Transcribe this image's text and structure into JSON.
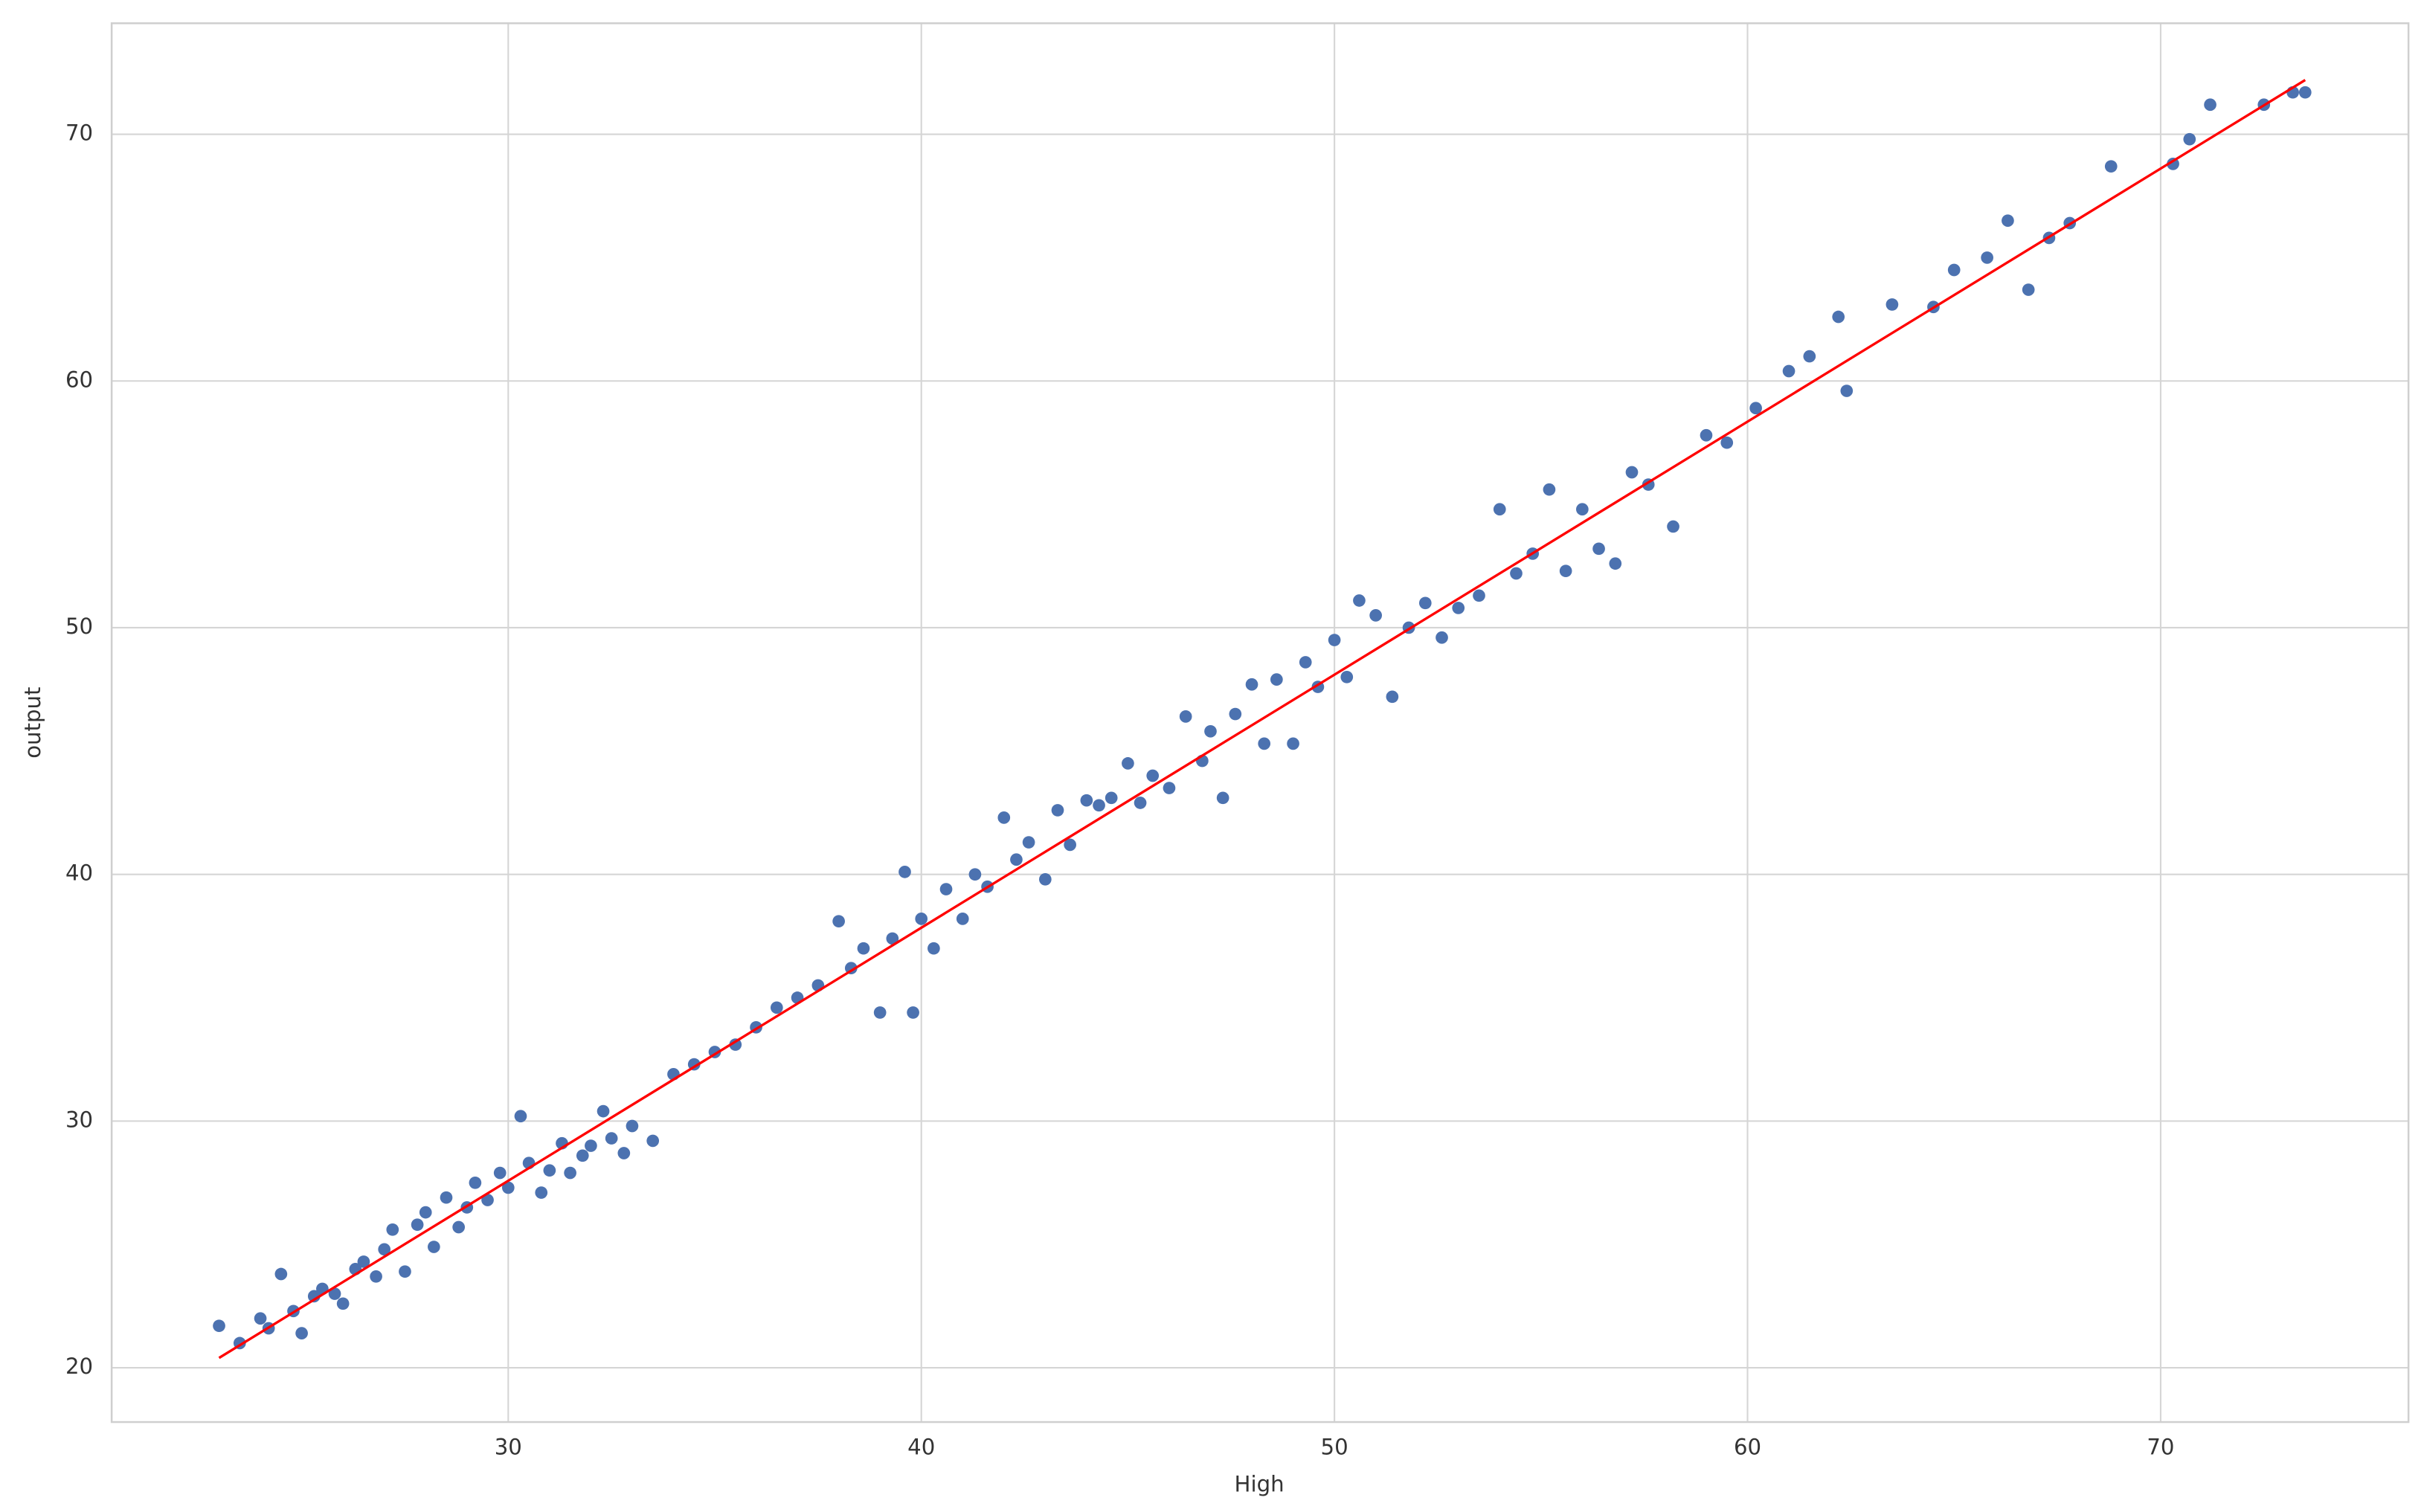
{
  "chart_data": {
    "type": "scatter",
    "xlabel": "High",
    "ylabel": "output",
    "xlim": [
      20.4,
      76.0
    ],
    "ylim": [
      17.8,
      74.5
    ],
    "xticks": [
      30,
      40,
      50,
      60,
      70
    ],
    "yticks": [
      20,
      30,
      40,
      50,
      60,
      70
    ],
    "grid": true,
    "series": [
      {
        "type": "scatter",
        "color": "#4c72b0",
        "x": [
          23.0,
          23.5,
          24,
          24.2,
          24.5,
          24.8,
          25,
          25.3,
          25.5,
          25.8,
          26,
          26.3,
          26.5,
          26.8,
          27,
          27.2,
          27.5,
          27.8,
          28,
          28.2,
          28.5,
          28.8,
          29,
          29.2,
          29.5,
          29.8,
          30,
          30.3,
          30.5,
          30.8,
          31,
          31.3,
          31.5,
          31.8,
          32,
          32.3,
          32.5,
          32.8,
          33,
          33.5,
          34,
          34.5,
          35,
          35.5,
          36,
          36.5,
          37,
          37.5,
          38,
          38.3,
          38.6,
          39,
          39.3,
          39.6,
          39.8,
          40,
          40.3,
          40.6,
          41,
          41.3,
          41.6,
          42,
          42.3,
          42.6,
          43,
          43.3,
          43.6,
          44,
          44.3,
          44.6,
          45,
          45.3,
          45.6,
          46,
          46.4,
          46.8,
          47,
          47.3,
          47.6,
          48,
          48.3,
          48.6,
          49,
          49.3,
          49.6,
          50,
          50.3,
          50.6,
          51,
          51.4,
          51.8,
          52.2,
          52.6,
          53,
          53.5,
          54,
          54.4,
          54.8,
          55.2,
          55.6,
          56,
          56.4,
          56.8,
          57.2,
          57.6,
          58.2,
          59,
          59.5,
          60.2,
          61,
          61.5,
          62.2,
          62.4,
          63.5,
          64.5,
          65,
          65.8,
          66.3,
          66.8,
          67.3,
          67.8,
          68.8,
          70.3,
          70.7,
          71.2,
          72.5,
          73.2,
          73.5
        ],
        "values": [
          21.7,
          21.0,
          22.0,
          21.6,
          23.8,
          22.3,
          21.4,
          22.9,
          23.2,
          23.0,
          22.6,
          24.0,
          24.3,
          23.7,
          24.8,
          25.6,
          23.9,
          25.8,
          26.3,
          24.9,
          26.9,
          25.7,
          26.5,
          27.5,
          26.8,
          27.9,
          27.3,
          30.2,
          28.3,
          27.1,
          28.0,
          29.1,
          27.9,
          28.6,
          29.0,
          30.4,
          29.3,
          28.7,
          29.8,
          29.2,
          31.9,
          32.3,
          32.8,
          33.1,
          33.8,
          34.6,
          35.0,
          35.5,
          38.1,
          36.2,
          37.0,
          34.4,
          37.4,
          40.1,
          34.4,
          38.2,
          37.0,
          39.4,
          38.2,
          40.0,
          39.5,
          42.3,
          40.6,
          41.3,
          39.8,
          42.6,
          41.2,
          43.0,
          42.8,
          43.1,
          44.5,
          42.9,
          44.0,
          43.5,
          46.4,
          44.6,
          45.8,
          43.1,
          46.5,
          47.7,
          45.3,
          47.9,
          45.3,
          48.6,
          47.6,
          49.5,
          48.0,
          51.1,
          50.5,
          47.2,
          50.0,
          51.0,
          49.6,
          50.8,
          51.3,
          54.8,
          52.2,
          53.0,
          55.6,
          52.3,
          54.8,
          53.2,
          52.6,
          56.3,
          55.8,
          54.1,
          57.8,
          57.5,
          58.9,
          60.4,
          61.0,
          62.6,
          59.6,
          63.1,
          63.0,
          64.5,
          65.0,
          66.5,
          63.7,
          65.8,
          66.4,
          68.7,
          68.8,
          69.8,
          71.2,
          71.2,
          71.7,
          71.7
        ]
      },
      {
        "type": "line",
        "color": "#ff0000",
        "x": [
          23.0,
          73.5
        ],
        "values": [
          20.4,
          72.2
        ]
      }
    ]
  }
}
